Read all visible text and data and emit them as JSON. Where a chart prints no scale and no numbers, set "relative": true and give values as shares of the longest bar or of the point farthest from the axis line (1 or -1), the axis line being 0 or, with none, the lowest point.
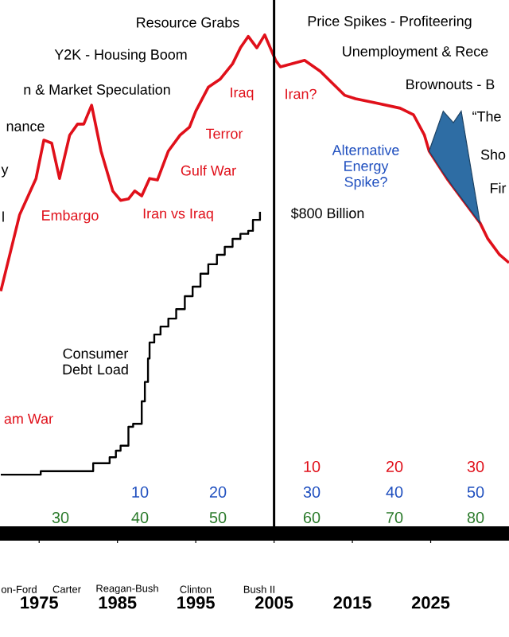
{
  "chart_data": {
    "type": "line",
    "relative": true,
    "xlim": [
      1970,
      2035
    ],
    "xticks": [
      1975,
      1985,
      1995,
      2005,
      2015,
      2025
    ],
    "series": [
      {
        "color": "#e0101a",
        "x": [
          1970.1,
          1972.5,
          1974.6,
          1975.6,
          1976.6,
          1977.6,
          1978.9,
          1979.9,
          1980.7,
          1981.7,
          1982.9,
          1984.4,
          1985.4,
          1986.4,
          1987.2,
          1988.1,
          1989.1,
          1990.1,
          1991.5,
          1993.0,
          1994.2,
          1995.0,
          1996.6,
          1998.1,
          1999.7,
          2000.7,
          2001.7,
          2002.8,
          2003.8,
          2005.2,
          2005.8,
          2008.9,
          2010.9,
          2014.0,
          2015.4,
          2018.1,
          2021.1,
          2022.8,
          2024.2,
          2024.8,
          2027.2,
          2031.3,
          2032.3,
          2033.8,
          2035.0
        ],
        "values": [
          0.486,
          0.639,
          0.712,
          0.789,
          0.783,
          0.712,
          0.799,
          0.821,
          0.821,
          0.859,
          0.767,
          0.687,
          0.668,
          0.671,
          0.687,
          0.677,
          0.712,
          0.709,
          0.767,
          0.799,
          0.815,
          0.847,
          0.895,
          0.911,
          0.942,
          0.974,
          0.997,
          0.974,
          1.0,
          0.949,
          0.936,
          0.949,
          0.927,
          0.879,
          0.872,
          0.863,
          0.853,
          0.84,
          0.799,
          0.767,
          0.709,
          0.623,
          0.591,
          0.559,
          0.543
        ]
      },
      {
        "type": "area",
        "color": "#2e6da4",
        "x": [
          2024.8,
          2026.6,
          2027.9,
          2028.9,
          2031.3
        ],
        "values": [
          0.767,
          0.847,
          0.824,
          0.847,
          0.623
        ]
      },
      {
        "type": "step",
        "color": "#000000",
        "x": [
          1970.1,
          1975.2,
          1981.9,
          1984.0,
          1984.8,
          1985.4,
          1986.4,
          1987.0,
          1988.1,
          1988.5,
          1988.9,
          1989.1,
          1989.7,
          1990.5,
          1991.5,
          1992.5,
          1993.6,
          1994.6,
          1995.6,
          1996.6,
          1997.7,
          1998.7,
          1999.7,
          2000.7,
          2001.7,
          2002.3,
          2003.2
        ],
        "values": [
          0.118,
          0.125,
          0.141,
          0.153,
          0.166,
          0.176,
          0.214,
          0.22,
          0.265,
          0.304,
          0.351,
          0.383,
          0.399,
          0.415,
          0.431,
          0.45,
          0.476,
          0.495,
          0.521,
          0.54,
          0.559,
          0.575,
          0.591,
          0.601,
          0.607,
          0.629,
          0.645
        ]
      }
    ],
    "ref_lines": [
      {
        "axis": "x",
        "value": 2005,
        "color": "#000000"
      }
    ],
    "annotations": [
      "Resource Grabs",
      "Price Spikes - Profiteering",
      "Y2K - Housing Boom",
      "Unemployment & Rece",
      "n & Market Speculation",
      "Brownouts - B",
      "nance",
      "y",
      "l",
      "“The",
      "Sho",
      "Fir",
      "Embargo",
      "Iran vs Iraq",
      "Gulf War",
      "Terror",
      "Iraq",
      "Iran?",
      "am War",
      "Alternative Energy Spike?",
      "Consumer Debt Load",
      "$800 Billion",
      "10",
      "20",
      "30",
      "10",
      "20",
      "30",
      "40",
      "50",
      "30",
      "40",
      "50",
      "60",
      "70",
      "80",
      "on-Ford",
      "Carter",
      "Reagan-Bush",
      "Clinton",
      "Bush II"
    ]
  }
}
